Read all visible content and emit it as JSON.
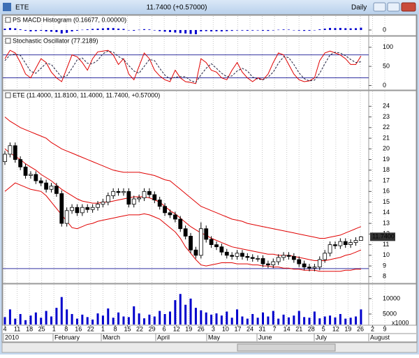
{
  "window": {
    "symbol": "ETE",
    "quote": "11.7400 (+0.57000)",
    "interval": "Daily"
  },
  "x_axis": {
    "day_labels": [
      "4",
      "11",
      "18",
      "25",
      "1",
      "8",
      "16",
      "22",
      "1",
      "8",
      "15",
      "22",
      "29",
      "6",
      "12",
      "19",
      "26",
      "3",
      "10",
      "17",
      "24",
      "31",
      "7",
      "14",
      "21",
      "28",
      "5",
      "12",
      "19",
      "26",
      "2",
      "9"
    ],
    "month_labels": [
      "2010",
      "February",
      "March",
      "April",
      "May",
      "June",
      "July",
      "August"
    ]
  },
  "chart_data": [
    {
      "type": "bar",
      "title": "PS MACD Histogram (0.16677, 0.00000)",
      "color": "#0000cc",
      "ylim": [
        -0.4,
        0.4
      ],
      "yticks": [
        0
      ],
      "values": [
        0.1,
        0.15,
        0.12,
        0.05,
        -0.05,
        -0.1,
        -0.08,
        -0.05,
        -0.1,
        -0.12,
        -0.15,
        -0.25,
        -0.2,
        -0.1,
        -0.05,
        0.02,
        0.05,
        0.08,
        0.1,
        0.12,
        0.15,
        0.14,
        0.1,
        0.08,
        -0.02,
        -0.05,
        0.02,
        0.06,
        0.04,
        -0.03,
        -0.08,
        -0.12,
        -0.15,
        -0.18,
        -0.22,
        -0.25,
        -0.28,
        -0.3,
        -0.1,
        -0.08,
        -0.1,
        -0.09,
        -0.1,
        -0.08,
        -0.06,
        -0.03,
        -0.04,
        -0.05,
        -0.04,
        -0.03,
        -0.05,
        -0.06,
        -0.03,
        0.02,
        0.04,
        0.03,
        -0.01,
        -0.04,
        -0.06,
        -0.05,
        -0.02,
        0.05,
        0.1,
        0.15,
        0.14,
        0.15,
        0.13,
        0.12,
        0.13,
        0.16677
      ]
    },
    {
      "type": "line",
      "title": "Stochastic Oscillator (77.2189)",
      "ylim": [
        -10,
        125
      ],
      "yticks": [
        0,
        50,
        100
      ],
      "hlines": [
        80,
        20
      ],
      "hline_color": "#3030a0",
      "series": [
        {
          "color": "#e00000",
          "values": [
            70,
            92,
            85,
            60,
            30,
            20,
            45,
            70,
            60,
            35,
            20,
            10,
            45,
            80,
            75,
            60,
            40,
            70,
            88,
            90,
            92,
            80,
            55,
            70,
            30,
            15,
            50,
            85,
            70,
            40,
            25,
            15,
            10,
            40,
            20,
            10,
            8,
            5,
            70,
            60,
            40,
            35,
            20,
            15,
            40,
            60,
            35,
            20,
            10,
            20,
            15,
            30,
            60,
            85,
            80,
            55,
            30,
            15,
            10,
            12,
            20,
            65,
            85,
            90,
            85,
            80,
            70,
            55,
            55,
            77.2189
          ]
        },
        {
          "color": "#202040",
          "dash": true,
          "values": [
            65,
            80,
            82,
            79,
            58,
            37,
            32,
            45,
            58,
            55,
            38,
            22,
            25,
            45,
            67,
            72,
            58,
            57,
            66,
            83,
            90,
            87,
            76,
            68,
            52,
            38,
            32,
            50,
            68,
            65,
            45,
            27,
            17,
            22,
            23,
            23,
            13,
            8,
            28,
            45,
            57,
            45,
            32,
            23,
            25,
            38,
            45,
            38,
            22,
            17,
            15,
            22,
            35,
            58,
            75,
            73,
            55,
            33,
            18,
            12,
            14,
            32,
            57,
            80,
            87,
            85,
            78,
            68,
            60,
            62
          ]
        }
      ]
    },
    {
      "type": "candlestick",
      "title": "ETE (11.4000, 11.8100, 11.4000, 11.7400, +0.57000)",
      "ylim": [
        7.5,
        25.2
      ],
      "yticks": [
        8,
        9,
        10,
        11,
        12,
        13,
        14,
        15,
        16,
        17,
        18,
        19,
        20,
        21,
        22,
        23,
        24
      ],
      "hlines": [
        8.75
      ],
      "hline_color": "#3030a0",
      "last_label": "11.7400",
      "open": [
        18.8,
        19.5,
        20.3,
        19.0,
        18.3,
        17.5,
        17.6,
        17.0,
        16.8,
        16.2,
        16.5,
        15.8,
        13.0,
        14.2,
        14.5,
        14.0,
        14.5,
        14.3,
        14.5,
        14.8,
        15.0,
        15.6,
        16.0,
        15.9,
        16.0,
        14.8,
        15.3,
        15.4,
        16.0,
        15.7,
        15.2,
        14.6,
        14.0,
        13.8,
        13.4,
        12.5,
        11.8,
        10.5,
        10.0,
        12.5,
        11.5,
        11.0,
        10.8,
        10.3,
        10.0,
        9.9,
        10.2,
        9.9,
        9.8,
        9.7,
        9.7,
        9.2,
        9.1,
        9.4,
        9.8,
        10.0,
        9.9,
        9.6,
        9.2,
        8.9,
        8.8,
        8.9,
        9.6,
        10.2,
        11.0,
        10.9,
        11.3,
        11.0,
        11.2,
        11.4
      ],
      "high": [
        19.8,
        20.6,
        20.6,
        19.3,
        18.6,
        17.9,
        17.9,
        17.3,
        17.1,
        16.8,
        16.8,
        16.1,
        14.5,
        14.8,
        14.8,
        14.8,
        14.8,
        14.8,
        15.1,
        15.3,
        15.9,
        16.3,
        16.3,
        16.3,
        16.3,
        15.6,
        15.7,
        16.3,
        16.3,
        16.0,
        15.5,
        14.9,
        14.3,
        14.1,
        13.7,
        12.8,
        12.1,
        10.8,
        13.1,
        12.8,
        11.8,
        11.3,
        11.1,
        10.6,
        10.3,
        10.5,
        10.5,
        10.2,
        10.1,
        10.0,
        10.0,
        9.5,
        9.7,
        10.1,
        10.3,
        10.3,
        10.2,
        9.9,
        9.5,
        9.2,
        9.2,
        9.9,
        10.5,
        11.3,
        11.3,
        11.6,
        11.6,
        11.5,
        11.7,
        11.81
      ],
      "low": [
        18.5,
        19.2,
        18.7,
        18.0,
        17.2,
        17.2,
        16.7,
        16.5,
        15.9,
        15.9,
        15.5,
        12.7,
        12.7,
        13.9,
        13.7,
        13.7,
        14.0,
        14.0,
        14.2,
        14.5,
        14.7,
        15.3,
        15.6,
        15.6,
        14.5,
        14.5,
        15.0,
        15.1,
        15.4,
        14.9,
        14.3,
        13.7,
        13.5,
        13.1,
        12.2,
        11.5,
        10.2,
        9.7,
        9.7,
        11.2,
        10.7,
        10.5,
        10.0,
        9.7,
        9.6,
        9.6,
        9.6,
        9.5,
        9.4,
        9.4,
        8.9,
        8.8,
        8.8,
        9.1,
        9.5,
        9.6,
        9.3,
        8.9,
        8.6,
        8.5,
        8.5,
        8.6,
        9.3,
        9.9,
        10.6,
        10.6,
        10.7,
        10.7,
        10.9,
        11.4
      ],
      "close": [
        19.5,
        20.3,
        19.0,
        18.3,
        17.5,
        17.6,
        17.0,
        16.8,
        16.2,
        16.5,
        15.8,
        13.0,
        14.2,
        14.5,
        14.0,
        14.5,
        14.3,
        14.5,
        14.8,
        15.0,
        15.6,
        16.0,
        15.9,
        16.0,
        14.8,
        15.3,
        15.4,
        16.0,
        15.7,
        15.2,
        14.6,
        14.0,
        13.8,
        13.4,
        12.5,
        11.8,
        10.5,
        10.0,
        12.5,
        11.5,
        11.0,
        10.8,
        10.3,
        10.0,
        9.9,
        10.2,
        9.9,
        9.8,
        9.7,
        9.7,
        9.2,
        9.1,
        9.4,
        9.8,
        10.0,
        9.9,
        9.6,
        9.2,
        8.9,
        8.8,
        8.9,
        9.6,
        10.2,
        11.0,
        10.9,
        11.3,
        11.0,
        11.2,
        11.4,
        11.74
      ],
      "series": [
        {
          "color": "#e00000",
          "values": [
            23,
            22.6,
            22.3,
            22,
            21.8,
            21.6,
            21.4,
            21.2,
            21,
            20.6,
            20.3,
            20,
            19.8,
            19.6,
            19.4,
            19.2,
            19,
            18.8,
            18.6,
            18.4,
            18.2,
            18,
            17.9,
            17.8,
            17.8,
            17.8,
            17.8,
            17.7,
            17.6,
            17.5,
            17.3,
            17.1,
            17,
            16.6,
            16.2,
            15.8,
            15.4,
            15,
            14.6,
            14.4,
            14.2,
            14,
            13.8,
            13.6,
            13.4,
            13.3,
            13.2,
            13,
            12.9,
            12.8,
            12.7,
            12.6,
            12.5,
            12.4,
            12.3,
            12.2,
            12.1,
            12,
            11.9,
            11.8,
            11.7,
            11.6,
            11.6,
            11.7,
            11.8,
            11.9,
            12.1,
            12.3,
            12.5,
            12.7
          ]
        },
        {
          "color": "#e00000",
          "values": [
            20,
            19.6,
            19.3,
            19,
            18.6,
            18.3,
            18,
            17.6,
            17.3,
            17,
            16.6,
            16.2,
            15.9,
            15.6,
            15.3,
            15.1,
            15,
            14.9,
            14.9,
            15,
            15,
            15.1,
            15.2,
            15.3,
            15.4,
            15.5,
            15.5,
            15.5,
            15.4,
            15.2,
            15,
            14.6,
            14.2,
            13.9,
            13.5,
            13.1,
            12.7,
            12.4,
            12.1,
            11.9,
            11.6,
            11.4,
            11.2,
            11,
            10.8,
            10.7,
            10.6,
            10.5,
            10.4,
            10.3,
            10.2,
            10.1,
            10.1,
            10,
            10,
            10,
            9.9,
            9.8,
            9.7,
            9.6,
            9.5,
            9.5,
            9.5,
            9.6,
            9.7,
            9.8,
            10,
            10.1,
            10.3,
            10.5
          ]
        },
        {
          "color": "#e00000",
          "values": [
            16,
            16.4,
            16.8,
            16.6,
            16.4,
            16.2,
            16.1,
            16,
            15.6,
            15,
            14.4,
            13.8,
            13.2,
            12.6,
            12.5,
            12.7,
            12.9,
            13,
            13.2,
            13.3,
            13.4,
            13.5,
            13.6,
            13.7,
            13.8,
            13.8,
            13.8,
            13.9,
            13.8,
            13.6,
            13.4,
            13,
            12.6,
            12.2,
            11.6,
            10.8,
            10.2,
            9.6,
            9.1,
            9,
            9.1,
            9.2,
            9.3,
            9.3,
            9.3,
            9.2,
            9.2,
            9.2,
            9.1,
            9.1,
            9,
            9,
            8.9,
            8.9,
            8.8,
            8.8,
            8.7,
            8.7,
            8.6,
            8.6,
            8.6,
            8.5,
            8.5,
            8.5,
            8.5,
            8.5,
            8.6,
            8.6,
            8.7,
            8.7
          ]
        }
      ]
    },
    {
      "type": "bar",
      "color": "#0000cc",
      "ylim": [
        1600,
        14500
      ],
      "yticks": [
        5000,
        10000
      ],
      "unit_label": "x1000",
      "values": [
        4000,
        6500,
        3500,
        5000,
        3000,
        4500,
        5500,
        3800,
        6000,
        4200,
        7000,
        10500,
        6500,
        5000,
        3500,
        4800,
        4000,
        3200,
        5200,
        4500,
        6800,
        3800,
        5500,
        4200,
        4000,
        7500,
        5200,
        3600,
        4800,
        4200,
        6000,
        5000,
        5800,
        9500,
        11500,
        8000,
        10000,
        7000,
        6200,
        5500,
        4800,
        5200,
        4500,
        5800,
        3800,
        6500,
        4200,
        3500,
        5000,
        3800,
        5500,
        4200,
        6000,
        3500,
        4800,
        3900,
        4500,
        6000,
        4000,
        3800,
        5800,
        3600,
        4200,
        4500,
        3900,
        5000,
        3500,
        3800,
        4200,
        6500
      ]
    }
  ]
}
